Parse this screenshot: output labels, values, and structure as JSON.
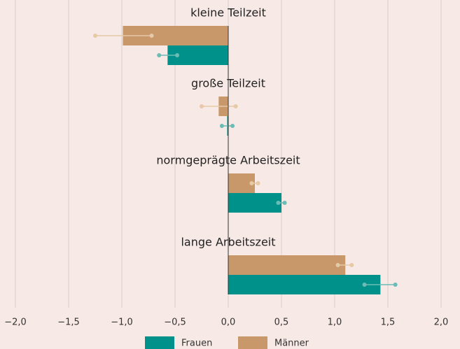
{
  "chart_data": {
    "type": "bar",
    "categories": [
      "kleine Teilzeit",
      "große Teilzeit",
      "normgeprägte Arbeitszeit",
      "lange Arbeitszeit"
    ],
    "series": [
      {
        "name": "Männer",
        "color": "#c8976a",
        "error_color": "#e6c9a6",
        "values": [
          -0.99,
          -0.09,
          0.25,
          1.1
        ],
        "ci": [
          [
            -1.25,
            -0.72
          ],
          [
            -0.25,
            0.07
          ],
          [
            0.22,
            0.28
          ],
          [
            1.03,
            1.16
          ]
        ]
      },
      {
        "name": "Frauen",
        "color": "#00928a",
        "error_color": "#6cbcb5",
        "values": [
          -0.57,
          -0.01,
          0.5,
          1.43
        ],
        "ci": [
          [
            -0.65,
            -0.48
          ],
          [
            -0.06,
            0.04
          ],
          [
            0.47,
            0.53
          ],
          [
            1.28,
            1.57
          ]
        ]
      }
    ],
    "xlim": [
      -2.0,
      2.0
    ],
    "xticks": [
      {
        "value": -2.0,
        "label": "−2,0"
      },
      {
        "value": -1.5,
        "label": "−1,5"
      },
      {
        "value": -1.0,
        "label": "−1,0"
      },
      {
        "value": -0.5,
        "label": "−0,5"
      },
      {
        "value": 0.0,
        "label": "0,0"
      },
      {
        "value": 0.5,
        "label": "0,5"
      },
      {
        "value": 1.0,
        "label": "1,0"
      },
      {
        "value": 1.5,
        "label": "1,5"
      },
      {
        "value": 2.0,
        "label": "2,0"
      }
    ],
    "grid": true
  }
}
